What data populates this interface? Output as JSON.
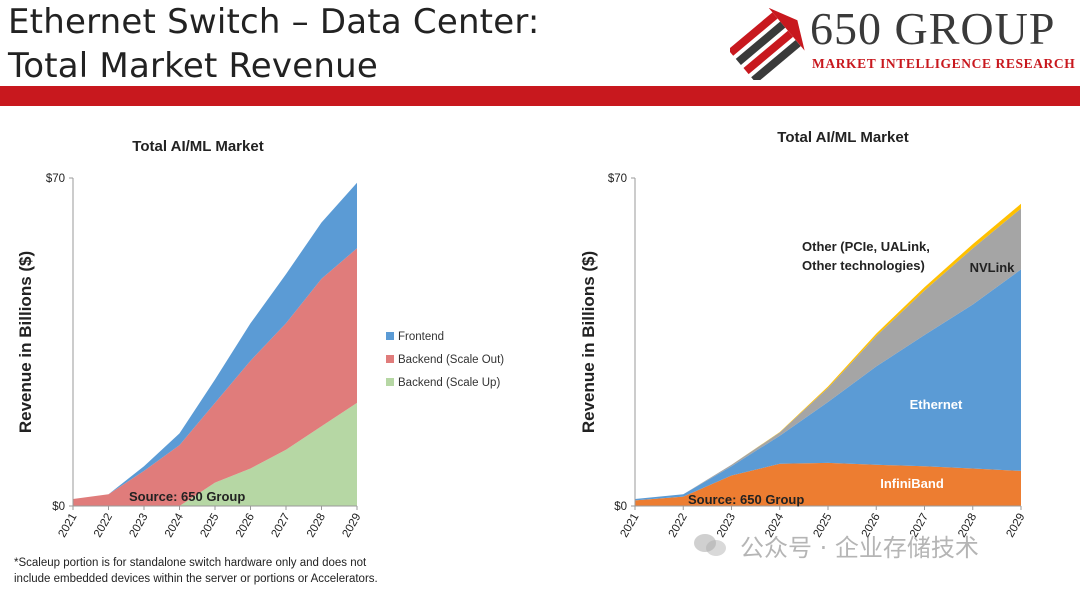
{
  "slide": {
    "title_line1": "Ethernet Switch – Data Center:",
    "title_line2": "Total Market Revenue",
    "logo_name": "650 GROUP",
    "logo_tagline": "MARKET INTELLIGENCE RESEARCH",
    "brand_color": "#c8181e",
    "footnote_line1": "*Scaleup portion is for standalone switch hardware only and does not",
    "footnote_line2": "include embedded devices within the server or portions or Accelerators.",
    "watermark_text": "公众号 · 企业存储技术"
  },
  "chart_data": [
    {
      "type": "area",
      "stacked": true,
      "title": "Total AI/ML Market",
      "ylabel": "Revenue in Billions ($)",
      "xlabel": "",
      "ylim": [
        0,
        70
      ],
      "ytick_labels": [
        "$0",
        "$70"
      ],
      "x": [
        "2021",
        "2022",
        "2023",
        "2024",
        "2025",
        "2026",
        "2027",
        "2028",
        "2029"
      ],
      "series": [
        {
          "name": "Backend (Scale Up)",
          "color": "#b6d7a4",
          "values": [
            0,
            0,
            0,
            0,
            5,
            8,
            12,
            17,
            22
          ]
        },
        {
          "name": "Backend (Scale Out)",
          "color": "#e07c7b",
          "values": [
            1.5,
            2.5,
            7.5,
            13,
            17,
            23,
            27,
            31.5,
            33
          ]
        },
        {
          "name": "Frontend",
          "color": "#5b9bd5",
          "values": [
            0,
            0,
            1,
            2.5,
            5,
            8,
            10.5,
            12,
            14
          ]
        }
      ],
      "legend_position": "right",
      "annotations": [
        "Source: 650 Group"
      ]
    },
    {
      "type": "area",
      "stacked": true,
      "title": "Total AI/ML Market",
      "ylabel": "Revenue  in Billions ($)",
      "xlabel": "",
      "ylim": [
        0,
        70
      ],
      "ytick_labels": [
        "$0",
        "$70"
      ],
      "x": [
        "2021",
        "2022",
        "2023",
        "2024",
        "2025",
        "2026",
        "2027",
        "2028",
        "2029"
      ],
      "series": [
        {
          "name": "InfiniBand",
          "color": "#ed7d31",
          "values": [
            1.2,
            2,
            6.5,
            9,
            9.2,
            8.8,
            8.5,
            8,
            7.5
          ]
        },
        {
          "name": "Ethernet",
          "color": "#5b9bd5",
          "values": [
            0.3,
            0.5,
            2,
            6,
            13,
            21,
            28,
            35,
            43
          ]
        },
        {
          "name": "NVLink",
          "color": "#a5a5a5",
          "values": [
            0,
            0,
            0.3,
            0.7,
            3,
            6.5,
            9.5,
            12,
            13
          ]
        },
        {
          "name": "Other (PCIe, UALink, Other technologies)",
          "color": "#ffc000",
          "values": [
            0,
            0,
            0,
            0.1,
            0.3,
            0.5,
            0.7,
            0.9,
            1
          ]
        }
      ],
      "area_labels": [
        "InfiniBand",
        "Ethernet",
        "NVLink"
      ],
      "callout_line1": "Other (PCIe, UALink,",
      "callout_line2": "Other technologies)",
      "annotations": [
        "Source: 650 Group"
      ]
    }
  ]
}
